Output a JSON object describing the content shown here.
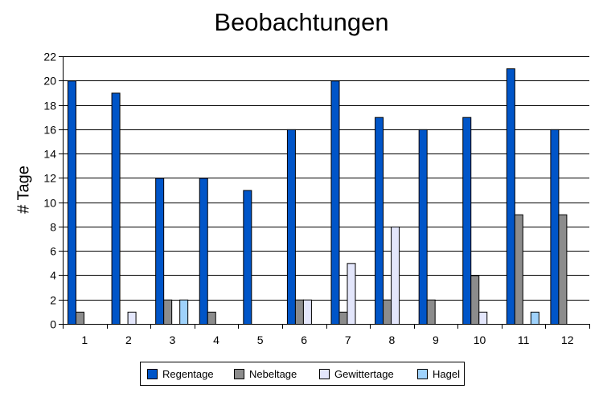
{
  "chart_data": {
    "type": "bar",
    "title": "Beobachtungen",
    "xlabel": "",
    "ylabel": "# Tage",
    "ylim": [
      0,
      22
    ],
    "yticks": [
      0,
      2,
      4,
      6,
      8,
      10,
      12,
      14,
      16,
      18,
      20,
      22
    ],
    "categories": [
      "1",
      "2",
      "3",
      "4",
      "5",
      "6",
      "7",
      "8",
      "9",
      "10",
      "11",
      "12"
    ],
    "grid": true,
    "legend_position": "bottom",
    "series": [
      {
        "name": "Regentage",
        "color": "#0055c8",
        "values": [
          20,
          19,
          12,
          12,
          11,
          16,
          20,
          17,
          16,
          17,
          21,
          16
        ]
      },
      {
        "name": "Nebeltage",
        "color": "#8c8c8c",
        "values": [
          1,
          0,
          2,
          1,
          0,
          2,
          1,
          2,
          2,
          4,
          9,
          9
        ]
      },
      {
        "name": "Gewittertage",
        "color": "#e3e6fb",
        "values": [
          0,
          1,
          0,
          0,
          0,
          2,
          5,
          8,
          0,
          1,
          0,
          0
        ]
      },
      {
        "name": "Hagel",
        "color": "#9fd2fb",
        "values": [
          0,
          0,
          2,
          0,
          0,
          0,
          0,
          0,
          0,
          0,
          1,
          0
        ]
      }
    ]
  }
}
